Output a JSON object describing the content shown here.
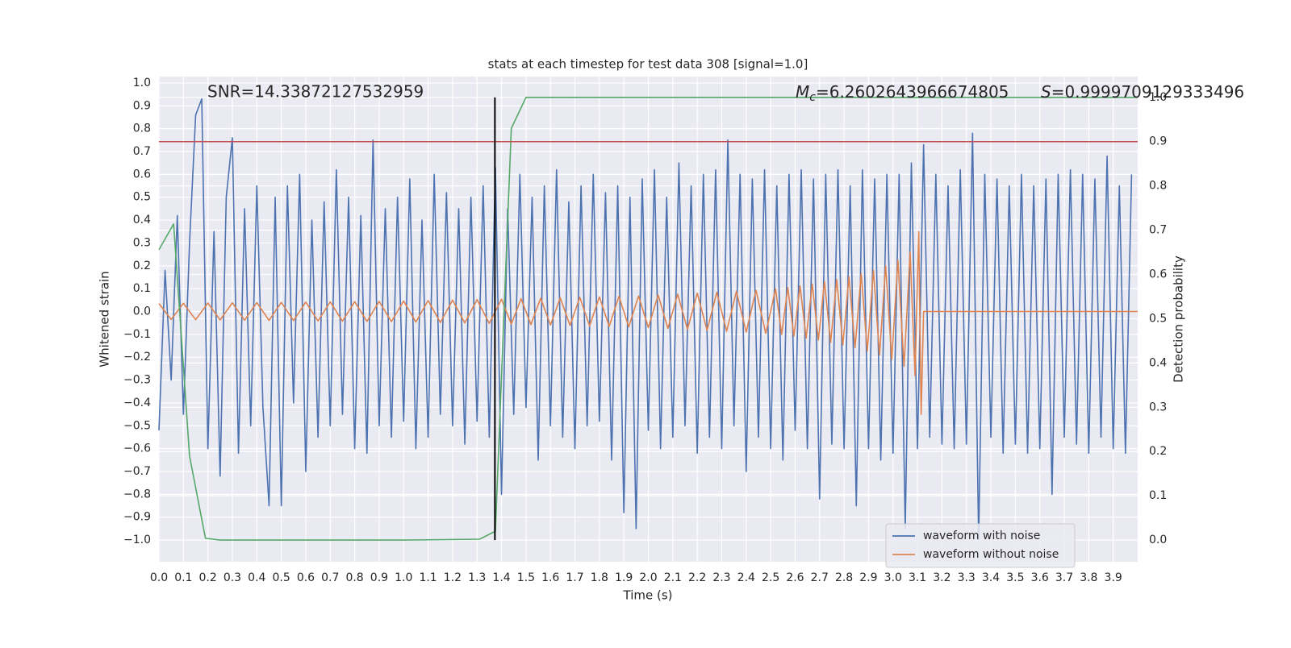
{
  "chart_data": {
    "type": "line",
    "title": "stats at each timestep for test data 308 [signal=1.0]",
    "xlabel": "Time (s)",
    "ylabel": "Whitened strain",
    "y2label": "Detection probability",
    "grid": true,
    "legend": "lower right",
    "xlim": [
      0,
      4.0
    ],
    "ylim": [
      -1.095,
      1.028
    ],
    "y2lim": [
      -0.049,
      1.047
    ],
    "xticks": [
      {
        "value": 0,
        "label": "0.0"
      },
      0.1,
      0.2,
      0.3,
      0.4,
      0.5,
      0.6,
      0.7,
      0.8,
      0.9,
      {
        "value": 1,
        "label": "1.0"
      },
      1.1,
      1.2,
      1.3,
      1.4,
      1.5,
      1.6,
      1.7,
      1.8,
      1.9,
      {
        "value": 2,
        "label": "2.0"
      },
      2.1,
      2.2,
      2.3,
      2.4,
      2.5,
      2.6,
      2.7,
      2.8,
      2.9,
      {
        "value": 3,
        "label": "3.0"
      },
      3.1,
      3.2,
      3.3,
      3.4,
      3.5,
      3.6,
      3.7,
      3.8,
      3.9
    ],
    "yticks": [
      {
        "value": -1,
        "label": "−1.0"
      },
      {
        "value": -0.9,
        "label": "−0.9"
      },
      {
        "value": -0.8,
        "label": "−0.8"
      },
      {
        "value": -0.7,
        "label": "−0.7"
      },
      {
        "value": -0.6,
        "label": "−0.6"
      },
      {
        "value": -0.5,
        "label": "−0.5"
      },
      {
        "value": -0.4,
        "label": "−0.4"
      },
      {
        "value": -0.3,
        "label": "−0.3"
      },
      {
        "value": -0.2,
        "label": "−0.2"
      },
      {
        "value": -0.1,
        "label": "−0.1"
      },
      {
        "value": 0,
        "label": "0.0"
      },
      0.1,
      0.2,
      0.3,
      0.4,
      0.5,
      0.6,
      0.7,
      0.8,
      0.9,
      {
        "value": 1,
        "label": "1.0"
      }
    ],
    "y2ticks": [
      {
        "value": 0,
        "label": "0.0"
      },
      0.1,
      0.2,
      0.3,
      0.4,
      0.5,
      0.6,
      0.7,
      0.8,
      0.9,
      {
        "value": 1,
        "label": "1.0"
      }
    ],
    "annotations": {
      "snr": "SNR=14.33872127532959",
      "mc": {
        "symbol": "M",
        "subscript": "c",
        "text": "=6.2602643966674805"
      },
      "s": {
        "symbol": "S",
        "text": "=0.9999709129333496"
      }
    },
    "series": [
      {
        "name": "waveform with noise",
        "color": "#4c72b0",
        "x": [
          0,
          0.025,
          0.05,
          0.075,
          0.1,
          0.125,
          0.15,
          0.175,
          0.2,
          0.225,
          0.25,
          0.275,
          0.3,
          0.325,
          0.35,
          0.375,
          0.4,
          0.425,
          0.45,
          0.475,
          0.5,
          0.525,
          0.55,
          0.575,
          0.6,
          0.625,
          0.65,
          0.675,
          0.7,
          0.725,
          0.75,
          0.775,
          0.8,
          0.825,
          0.85,
          0.875,
          0.9,
          0.925,
          0.95,
          0.975,
          1,
          1.025,
          1.05,
          1.075,
          1.1,
          1.125,
          1.15,
          1.175,
          1.2,
          1.225,
          1.25,
          1.275,
          1.3,
          1.325,
          1.35,
          1.375,
          1.4,
          1.425,
          1.45,
          1.475,
          1.5,
          1.525,
          1.55,
          1.575,
          1.6,
          1.625,
          1.65,
          1.675,
          1.7,
          1.725,
          1.75,
          1.775,
          1.8,
          1.825,
          1.85,
          1.875,
          1.9,
          1.925,
          1.95,
          1.975,
          2,
          2.025,
          2.05,
          2.075,
          2.1,
          2.125,
          2.15,
          2.175,
          2.2,
          2.225,
          2.25,
          2.275,
          2.3,
          2.325,
          2.35,
          2.375,
          2.4,
          2.425,
          2.45,
          2.475,
          2.5,
          2.525,
          2.55,
          2.575,
          2.6,
          2.625,
          2.65,
          2.675,
          2.7,
          2.725,
          2.75,
          2.775,
          2.8,
          2.825,
          2.85,
          2.875,
          2.9,
          2.925,
          2.95,
          2.975,
          3,
          3.025,
          3.05,
          3.075,
          3.1,
          3.125,
          3.15,
          3.175,
          3.2,
          3.225,
          3.25,
          3.275,
          3.3,
          3.325,
          3.35,
          3.375,
          3.4,
          3.425,
          3.45,
          3.475,
          3.5,
          3.525,
          3.55,
          3.575,
          3.6,
          3.625,
          3.65,
          3.675,
          3.7,
          3.725,
          3.75,
          3.775,
          3.8,
          3.825,
          3.85,
          3.875,
          3.9,
          3.925,
          3.95,
          3.975
        ],
        "values": [
          -0.52,
          0.18,
          -0.3,
          0.42,
          -0.45,
          0.3,
          0.86,
          0.93,
          -0.6,
          0.35,
          -0.72,
          0.5,
          0.76,
          -0.62,
          0.45,
          -0.5,
          0.55,
          -0.42,
          -0.85,
          0.5,
          -0.85,
          0.55,
          -0.4,
          0.6,
          -0.7,
          0.4,
          -0.55,
          0.48,
          -0.5,
          0.62,
          -0.45,
          0.5,
          -0.6,
          0.42,
          -0.62,
          0.75,
          -0.5,
          0.45,
          -0.55,
          0.5,
          -0.48,
          0.58,
          -0.6,
          0.4,
          -0.55,
          0.6,
          -0.45,
          0.52,
          -0.5,
          0.45,
          -0.58,
          0.5,
          -0.48,
          0.55,
          -0.55,
          0.63,
          -0.8,
          0.45,
          -0.45,
          0.6,
          -0.42,
          0.5,
          -0.65,
          0.55,
          -0.5,
          0.62,
          -0.55,
          0.48,
          -0.6,
          0.55,
          -0.5,
          0.6,
          -0.48,
          0.52,
          -0.65,
          0.55,
          -0.88,
          0.5,
          -0.95,
          0.58,
          -0.52,
          0.62,
          -0.6,
          0.5,
          -0.55,
          0.65,
          -0.5,
          0.55,
          -0.62,
          0.6,
          -0.55,
          0.62,
          -0.6,
          0.75,
          -0.5,
          0.6,
          -0.7,
          0.58,
          -0.55,
          0.62,
          -0.6,
          0.55,
          -0.65,
          0.6,
          -0.52,
          0.62,
          -0.6,
          0.58,
          -0.82,
          0.6,
          -0.58,
          0.62,
          -0.6,
          0.55,
          -0.85,
          0.62,
          -0.6,
          0.58,
          -0.65,
          0.6,
          -0.62,
          0.6,
          -0.95,
          0.65,
          -0.6,
          0.73,
          -0.55,
          0.6,
          -0.58,
          0.55,
          -0.6,
          0.62,
          -0.58,
          0.78,
          -1.0,
          0.6,
          -0.55,
          0.58,
          -0.62,
          0.55,
          -0.58,
          0.6,
          -0.62,
          0.55,
          -0.6,
          0.58,
          -0.8,
          0.6,
          -0.55,
          0.62,
          -0.58,
          0.6,
          -0.62,
          0.58,
          -0.55,
          0.68,
          -0.6,
          0.55,
          -0.62,
          0.6
        ]
      },
      {
        "name": "waveform without noise",
        "color": "#dd8452",
        "x": [
          0,
          0.05,
          0.1,
          0.15,
          0.2,
          0.25,
          0.3,
          0.35,
          0.4,
          0.45,
          0.5,
          0.55,
          0.6,
          0.65,
          0.7,
          0.75,
          0.8,
          0.85,
          0.9,
          0.95,
          1,
          1.05,
          1.1,
          1.15,
          1.2,
          1.25,
          1.3,
          1.35,
          1.4,
          1.44,
          1.48,
          1.52,
          1.56,
          1.6,
          1.64,
          1.68,
          1.72,
          1.76,
          1.8,
          1.84,
          1.88,
          1.92,
          1.96,
          2,
          2.04,
          2.08,
          2.12,
          2.16,
          2.2,
          2.24,
          2.28,
          2.32,
          2.36,
          2.4,
          2.44,
          2.48,
          2.52,
          2.545,
          2.57,
          2.595,
          2.62,
          2.645,
          2.67,
          2.695,
          2.72,
          2.745,
          2.77,
          2.795,
          2.82,
          2.845,
          2.87,
          2.895,
          2.92,
          2.945,
          2.97,
          2.995,
          3.02,
          3.045,
          3.07,
          3.09,
          3.105,
          3.115,
          3.125,
          4.0
        ],
        "values": [
          0.035,
          -0.035,
          0.036,
          -0.036,
          0.037,
          -0.037,
          0.038,
          -0.038,
          0.039,
          -0.039,
          0.04,
          -0.04,
          0.041,
          -0.041,
          0.042,
          -0.042,
          0.043,
          -0.043,
          0.044,
          -0.044,
          0.046,
          -0.046,
          0.048,
          -0.048,
          0.05,
          -0.05,
          0.052,
          -0.052,
          0.054,
          -0.055,
          0.056,
          -0.057,
          0.058,
          -0.059,
          0.06,
          -0.061,
          0.062,
          -0.063,
          0.064,
          -0.065,
          0.066,
          -0.067,
          0.068,
          -0.07,
          0.072,
          -0.074,
          0.076,
          -0.078,
          0.08,
          -0.082,
          0.084,
          -0.086,
          0.088,
          -0.09,
          0.093,
          -0.096,
          0.099,
          -0.1,
          0.104,
          -0.108,
          0.112,
          -0.116,
          0.12,
          -0.125,
          0.13,
          -0.135,
          0.14,
          -0.146,
          0.152,
          -0.158,
          0.165,
          -0.172,
          0.18,
          -0.19,
          0.2,
          -0.21,
          0.225,
          -0.24,
          0.26,
          -0.28,
          0.35,
          -0.45,
          0,
          0
        ]
      }
    ],
    "probability": {
      "color": "#55a868",
      "axis": "y2",
      "x": [
        0,
        0.06,
        0.125,
        0.19,
        0.25,
        0.5,
        1.0,
        1.31,
        1.375,
        1.44,
        1.5,
        4.0
      ],
      "values": [
        0.656,
        0.714,
        0.19,
        0.004,
        0,
        0,
        0,
        0.002,
        0.02,
        0.93,
        1.0,
        1.0
      ]
    },
    "threshold": {
      "value": 0.9,
      "color": "#c44e52",
      "axis": "y2"
    },
    "marker": {
      "x": 1.373,
      "y2": [
        0,
        1.0
      ],
      "color": "#000000"
    }
  }
}
